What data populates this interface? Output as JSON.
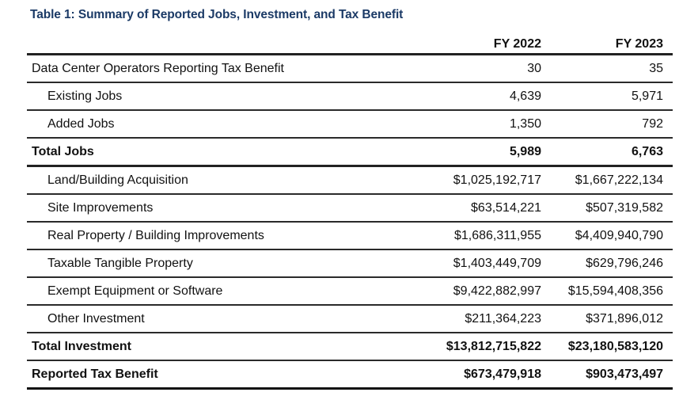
{
  "title": "Table 1: Summary of Reported Jobs, Investment, and Tax Benefit",
  "columns": [
    "",
    "FY 2022",
    "FY 2023"
  ],
  "rows": [
    {
      "label": "Data Center Operators Reporting Tax Benefit",
      "fy2022": "30",
      "fy2023": "35",
      "indent": false,
      "bold": false
    },
    {
      "label": "Existing Jobs",
      "fy2022": "4,639",
      "fy2023": "5,971",
      "indent": true,
      "bold": false
    },
    {
      "label": "Added Jobs",
      "fy2022": "1,350",
      "fy2023": "792",
      "indent": true,
      "bold": false
    },
    {
      "label": "Total Jobs",
      "fy2022": "5,989",
      "fy2023": "6,763",
      "indent": false,
      "bold": true
    },
    {
      "label": "Land/Building Acquisition",
      "fy2022": "$1,025,192,717",
      "fy2023": "$1,667,222,134",
      "indent": true,
      "bold": false
    },
    {
      "label": "Site Improvements",
      "fy2022": "$63,514,221",
      "fy2023": "$507,319,582",
      "indent": true,
      "bold": false
    },
    {
      "label": "Real Property / Building Improvements",
      "fy2022": "$1,686,311,955",
      "fy2023": "$4,409,940,790",
      "indent": true,
      "bold": false
    },
    {
      "label": "Taxable Tangible Property",
      "fy2022": "$1,403,449,709",
      "fy2023": "$629,796,246",
      "indent": true,
      "bold": false
    },
    {
      "label": "Exempt Equipment or Software",
      "fy2022": "$9,422,882,997",
      "fy2023": "$15,594,408,356",
      "indent": true,
      "bold": false
    },
    {
      "label": "Other Investment",
      "fy2022": "$211,364,223",
      "fy2023": "$371,896,012",
      "indent": true,
      "bold": false
    },
    {
      "label": "Total Investment",
      "fy2022": "$13,812,715,822",
      "fy2023": "$23,180,583,120",
      "indent": false,
      "bold": true
    },
    {
      "label": "Reported Tax Benefit",
      "fy2022": "$673,479,918",
      "fy2023": "$903,473,497",
      "indent": false,
      "bold": true
    }
  ]
}
